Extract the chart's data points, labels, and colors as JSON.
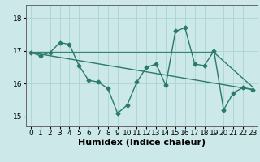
{
  "xlabel": "Humidex (Indice chaleur)",
  "bg_color": "#cce8e8",
  "line_color": "#2a7a6a",
  "grid_color": "#aad4d4",
  "xlim": [
    -0.5,
    23.5
  ],
  "ylim": [
    14.7,
    18.4
  ],
  "yticks": [
    15,
    16,
    17,
    18
  ],
  "xticks": [
    0,
    1,
    2,
    3,
    4,
    5,
    6,
    7,
    8,
    9,
    10,
    11,
    12,
    13,
    14,
    15,
    16,
    17,
    18,
    19,
    20,
    21,
    22,
    23
  ],
  "series1_x": [
    0,
    1,
    2,
    3,
    4,
    5,
    6,
    7,
    8,
    9,
    10,
    11,
    12,
    13,
    14,
    15,
    16,
    17,
    18,
    19,
    20,
    21,
    22,
    23
  ],
  "series1_y": [
    16.95,
    16.85,
    16.95,
    17.25,
    17.2,
    16.55,
    16.1,
    16.05,
    15.85,
    15.1,
    15.35,
    16.05,
    16.5,
    16.6,
    15.95,
    17.6,
    17.7,
    16.6,
    16.55,
    17.0,
    15.2,
    15.72,
    15.88,
    15.82
  ],
  "series2_x": [
    0,
    19,
    23
  ],
  "series2_y": [
    16.95,
    16.95,
    15.9
  ],
  "series3_x": [
    0,
    23
  ],
  "series3_y": [
    16.95,
    15.82
  ],
  "marker": "D",
  "markersize": 2.5,
  "linewidth": 1.0,
  "xlabel_fontsize": 8,
  "tick_fontsize": 6.5
}
